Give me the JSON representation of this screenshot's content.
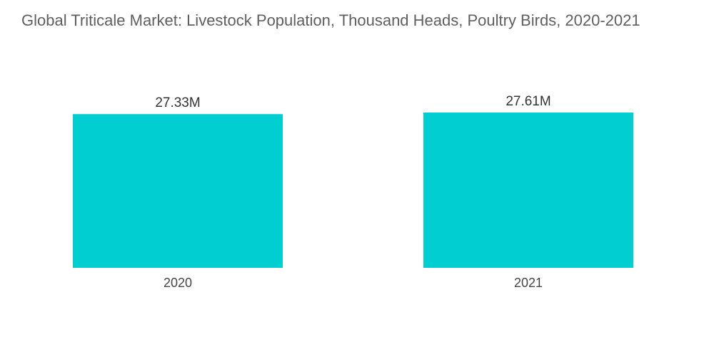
{
  "chart_data": {
    "type": "bar",
    "title": "Global Triticale Market: Livestock Population, Thousand Heads, Poultry Birds, 2020-2021",
    "categories": [
      "2020",
      "2021"
    ],
    "values": [
      27.33,
      27.61
    ],
    "data_labels": [
      "27.33M",
      "27.61M"
    ],
    "xlabel": "",
    "ylabel": "",
    "grid": false,
    "legend": "none",
    "bar_color": "#00CED1"
  }
}
